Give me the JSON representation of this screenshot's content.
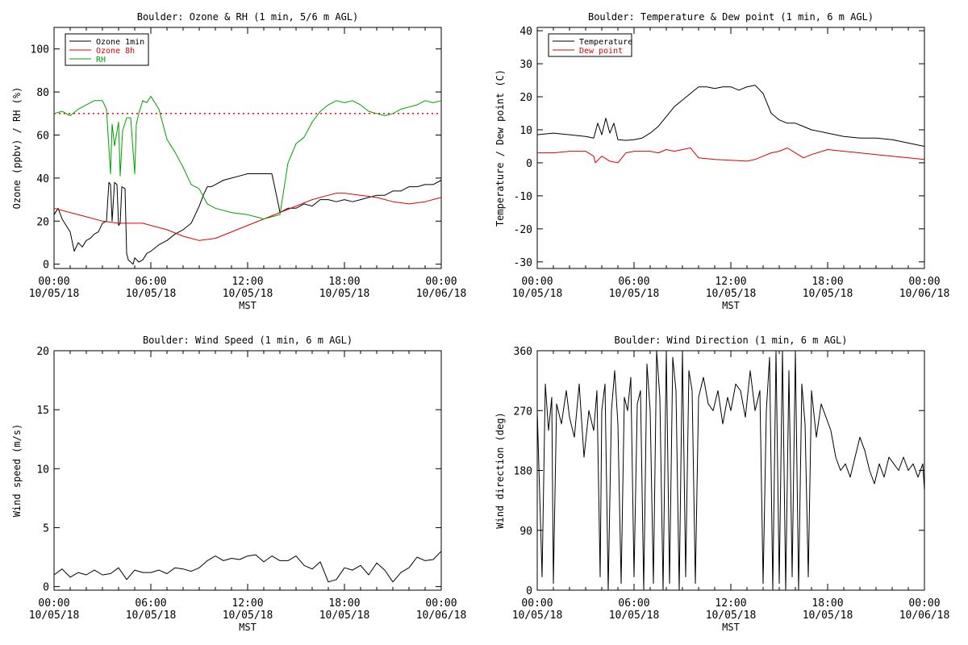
{
  "chart_data": [
    {
      "type": "line",
      "title": "Boulder: Ozone & RH (1 min, 5/6 m AGL)",
      "ylabel": "Ozone (ppbv) / RH (%)",
      "xlabel": "MST",
      "ylim": [
        -2,
        110
      ],
      "yticks": [
        "0",
        "20",
        "40",
        "60",
        "80",
        "100"
      ],
      "ytick_values": [
        0,
        20,
        40,
        60,
        80,
        100
      ],
      "xticks": [
        {
          "time": "00:00",
          "date": "10/05/18"
        },
        {
          "time": "06:00",
          "date": "10/05/18"
        },
        {
          "time": "12:00",
          "date": "10/05/18"
        },
        {
          "time": "18:00",
          "date": "10/05/18"
        },
        {
          "time": "00:00",
          "date": "10/06/18"
        }
      ],
      "xlim_hours": [
        0,
        24
      ],
      "legend_position": "top-left",
      "reference_lines": [
        {
          "y": 70,
          "color": "#ff0000",
          "style": "dotted"
        }
      ],
      "series": [
        {
          "name": "Ozone 1min",
          "color": "#000000",
          "x": [
            0,
            0.25,
            0.5,
            0.75,
            1,
            1.25,
            1.5,
            1.75,
            2,
            2.25,
            2.5,
            2.75,
            3,
            3.25,
            3.4,
            3.5,
            3.6,
            3.75,
            3.9,
            4,
            4.1,
            4.2,
            4.4,
            4.5,
            4.6,
            4.75,
            4.9,
            5,
            5.25,
            5.5,
            5.75,
            6,
            6.5,
            7,
            7.5,
            8,
            8.5,
            9,
            9.25,
            9.5,
            9.75,
            10,
            10.5,
            11,
            11.5,
            12,
            12.5,
            13,
            13.5,
            13.9,
            14,
            14.5,
            15,
            15.5,
            16,
            16.5,
            17,
            17.5,
            18,
            18.5,
            19,
            19.5,
            20,
            20.5,
            21,
            21.5,
            22,
            22.5,
            23,
            23.5,
            24
          ],
          "y": [
            23,
            26,
            21,
            18,
            15,
            6,
            10,
            8,
            11,
            12,
            14,
            15,
            19,
            20,
            38,
            37,
            20,
            38,
            37,
            18,
            19,
            36,
            35,
            5,
            2,
            1,
            0,
            3,
            1,
            2,
            5,
            6,
            9,
            11,
            14,
            16,
            19,
            27,
            32,
            36,
            36,
            37,
            39,
            40,
            41,
            42,
            42,
            42,
            42,
            28,
            24,
            26,
            26,
            28,
            27,
            30,
            30,
            29,
            30,
            29,
            30,
            31,
            32,
            32,
            34,
            34,
            36,
            36,
            37,
            37,
            39
          ]
        },
        {
          "name": "Ozone 8h",
          "color": "#dd0000",
          "x": [
            0,
            1,
            2,
            3,
            4,
            5,
            5.5,
            6,
            7,
            8,
            8.5,
            9,
            10,
            11,
            12,
            13,
            14,
            15,
            16,
            17,
            17.5,
            18,
            19,
            20,
            21,
            22,
            23,
            24
          ],
          "y": [
            26,
            24,
            22,
            20,
            19,
            19,
            19,
            18,
            16,
            13,
            12,
            11,
            12,
            15,
            18,
            21,
            24,
            27,
            30,
            32,
            33,
            33,
            32,
            31,
            29,
            28,
            29,
            31
          ]
        },
        {
          "name": "RH",
          "color": "#00a000",
          "x": [
            0,
            0.5,
            1,
            1.5,
            2,
            2.5,
            3,
            3.25,
            3.5,
            3.6,
            3.75,
            4,
            4.1,
            4.25,
            4.5,
            4.75,
            5,
            5.1,
            5.25,
            5.5,
            5.75,
            6,
            6.5,
            7,
            7.5,
            8,
            8.5,
            9,
            9.5,
            10,
            11,
            12,
            12.5,
            13,
            13.5,
            14,
            14.5,
            15,
            15.5,
            16,
            16.5,
            17,
            17.5,
            18,
            18.5,
            19,
            19.5,
            20,
            20.5,
            21,
            21.5,
            22,
            22.5,
            23,
            23.5,
            24
          ],
          "y": [
            70,
            71,
            69,
            72,
            74,
            76,
            76,
            72,
            42,
            65,
            55,
            66,
            41,
            62,
            68,
            68,
            42,
            65,
            70,
            76,
            75,
            78,
            72,
            58,
            52,
            45,
            37,
            35,
            28,
            26,
            24,
            23,
            22,
            21,
            22,
            23,
            47,
            56,
            59,
            66,
            71,
            74,
            76,
            75,
            76,
            74,
            71,
            70,
            69,
            70,
            72,
            73,
            74,
            76,
            75,
            76
          ]
        }
      ]
    },
    {
      "type": "line",
      "title": "Boulder: Temperature & Dew point (1 min, 6 m AGL)",
      "ylabel": "Temperature / Dew point (C)",
      "xlabel": "MST",
      "ylim": [
        -32,
        41
      ],
      "yticks": [
        "-30",
        "-20",
        "-10",
        "0",
        "10",
        "20",
        "30",
        "40"
      ],
      "ytick_values": [
        -30,
        -20,
        -10,
        0,
        10,
        20,
        30,
        40
      ],
      "xticks": [
        {
          "time": "00:00",
          "date": "10/05/18"
        },
        {
          "time": "06:00",
          "date": "10/05/18"
        },
        {
          "time": "12:00",
          "date": "10/05/18"
        },
        {
          "time": "18:00",
          "date": "10/05/18"
        },
        {
          "time": "00:00",
          "date": "10/06/18"
        }
      ],
      "xlim_hours": [
        0,
        24
      ],
      "legend_position": "top-left",
      "series": [
        {
          "name": "Temperature",
          "color": "#000000",
          "x": [
            0,
            1,
            2,
            3,
            3.5,
            3.75,
            4,
            4.25,
            4.5,
            4.75,
            5,
            5.5,
            6,
            6.5,
            7,
            7.5,
            8,
            8.5,
            9,
            9.5,
            10,
            10.5,
            11,
            11.5,
            12,
            12.5,
            13,
            13.5,
            14,
            14.5,
            15,
            15.5,
            16,
            16.5,
            17,
            18,
            19,
            20,
            21,
            22,
            23,
            24
          ],
          "y": [
            8.5,
            9,
            8.5,
            8,
            7.5,
            12,
            8.5,
            13.5,
            9,
            12,
            7,
            6.8,
            7,
            7.5,
            9,
            11,
            14,
            17,
            19,
            21,
            23,
            23,
            22.5,
            23,
            23,
            22,
            23,
            23.5,
            21,
            15,
            13,
            12,
            12,
            11,
            10,
            9,
            8,
            7.5,
            7.5,
            7,
            6,
            5
          ]
        },
        {
          "name": "Dew point",
          "color": "#dd0000",
          "x": [
            0,
            1,
            2,
            3,
            3.5,
            3.6,
            4,
            4.5,
            5,
            5.5,
            6,
            6.5,
            7,
            7.5,
            8,
            8.5,
            9,
            9.5,
            10,
            11,
            12,
            13,
            13.5,
            14,
            14.5,
            15,
            15.5,
            16,
            16.5,
            17,
            18,
            19,
            20,
            21,
            22,
            23,
            24
          ],
          "y": [
            3,
            3,
            3.5,
            3.5,
            2,
            0,
            2,
            0.5,
            0,
            3,
            3.5,
            3.5,
            3.5,
            3,
            4,
            3.5,
            4,
            4.5,
            1.5,
            1,
            0.8,
            0.5,
            1,
            2,
            3,
            3.5,
            4.5,
            3,
            1.5,
            2.5,
            4,
            3.5,
            3,
            2.5,
            2,
            1.5,
            1
          ]
        }
      ]
    },
    {
      "type": "line",
      "title": "Boulder: Wind Speed (1 min, 6 m AGL)",
      "ylabel": "Wind speed (m/s)",
      "xlabel": "MST",
      "ylim": [
        -0.3,
        20
      ],
      "yticks": [
        "0",
        "5",
        "10",
        "15",
        "20"
      ],
      "ytick_values": [
        0,
        5,
        10,
        15,
        20
      ],
      "xticks": [
        {
          "time": "00:00",
          "date": "10/05/18"
        },
        {
          "time": "06:00",
          "date": "10/05/18"
        },
        {
          "time": "12:00",
          "date": "10/05/18"
        },
        {
          "time": "18:00",
          "date": "10/05/18"
        },
        {
          "time": "00:00",
          "date": "10/06/18"
        }
      ],
      "xlim_hours": [
        0,
        24
      ],
      "series": [
        {
          "color": "#000000",
          "x": [
            0,
            0.5,
            1,
            1.5,
            2,
            2.5,
            3,
            3.5,
            4,
            4.5,
            5,
            5.5,
            6,
            6.5,
            7,
            7.5,
            8,
            8.5,
            9,
            9.5,
            10,
            10.5,
            11,
            11.5,
            12,
            12.5,
            13,
            13.5,
            14,
            14.5,
            15,
            15.5,
            16,
            16.5,
            17,
            17.5,
            18,
            18.5,
            19,
            19.5,
            20,
            20.5,
            21,
            21.5,
            22,
            22.5,
            23,
            23.5,
            24
          ],
          "y": [
            1,
            1.5,
            0.8,
            1.2,
            1,
            1.4,
            1,
            1.1,
            1.6,
            0.6,
            1.4,
            1.2,
            1.2,
            1.4,
            1.1,
            1.6,
            1.5,
            1.3,
            1.6,
            2.2,
            2.6,
            2.2,
            2.4,
            2.3,
            2.6,
            2.7,
            2.1,
            2.6,
            2.2,
            2.2,
            2.6,
            1.8,
            1.5,
            2.1,
            0.4,
            0.6,
            1.6,
            1.4,
            1.8,
            1,
            2,
            1.4,
            0.4,
            1.2,
            1.6,
            2.5,
            2.2,
            2.3,
            3
          ]
        }
      ]
    },
    {
      "type": "line",
      "title": "Boulder: Wind Direction (1 min, 6 m AGL)",
      "ylabel": "Wind direction (deg)",
      "xlabel": "MST",
      "ylim": [
        0,
        360
      ],
      "yticks": [
        "0",
        "90",
        "180",
        "270",
        "360"
      ],
      "ytick_values": [
        0,
        90,
        180,
        270,
        360
      ],
      "xticks": [
        {
          "time": "00:00",
          "date": "10/05/18"
        },
        {
          "time": "06:00",
          "date": "10/05/18"
        },
        {
          "time": "12:00",
          "date": "10/05/18"
        },
        {
          "time": "18:00",
          "date": "10/05/18"
        },
        {
          "time": "00:00",
          "date": "10/06/18"
        }
      ],
      "xlim_hours": [
        0,
        24
      ],
      "series": [
        {
          "color": "#000000",
          "x": [
            0,
            0.3,
            0.5,
            0.7,
            0.9,
            1,
            1.2,
            1.5,
            1.8,
            2,
            2.3,
            2.6,
            2.9,
            3.2,
            3.5,
            3.7,
            3.9,
            4,
            4.2,
            4.4,
            4.6,
            4.8,
            5,
            5.2,
            5.4,
            5.6,
            5.8,
            6,
            6.2,
            6.4,
            6.6,
            6.8,
            7,
            7.2,
            7.4,
            7.6,
            7.8,
            8,
            8.2,
            8.4,
            8.6,
            8.8,
            9,
            9.2,
            9.4,
            9.6,
            9.8,
            10,
            10.3,
            10.6,
            10.9,
            11.2,
            11.5,
            11.8,
            12,
            12.3,
            12.6,
            12.9,
            13.2,
            13.5,
            13.8,
            14,
            14.2,
            14.4,
            14.6,
            14.8,
            15,
            15.2,
            15.4,
            15.6,
            15.8,
            16,
            16.2,
            16.4,
            16.6,
            16.8,
            17,
            17.3,
            17.6,
            17.9,
            18.2,
            18.5,
            18.8,
            19.1,
            19.4,
            19.7,
            20,
            20.3,
            20.6,
            20.9,
            21.2,
            21.5,
            21.8,
            22.1,
            22.4,
            22.7,
            23,
            23.3,
            23.6,
            23.9,
            24
          ],
          "y": [
            270,
            20,
            310,
            240,
            290,
            10,
            280,
            250,
            300,
            260,
            230,
            310,
            200,
            270,
            240,
            300,
            20,
            270,
            310,
            0,
            270,
            330,
            250,
            10,
            290,
            270,
            320,
            20,
            280,
            300,
            0,
            340,
            270,
            10,
            360,
            290,
            0,
            360,
            10,
            350,
            300,
            0,
            360,
            20,
            330,
            300,
            10,
            290,
            320,
            280,
            270,
            300,
            250,
            290,
            270,
            310,
            300,
            260,
            330,
            270,
            300,
            10,
            270,
            350,
            0,
            360,
            10,
            360,
            0,
            330,
            20,
            360,
            0,
            310,
            250,
            20,
            300,
            230,
            280,
            260,
            240,
            200,
            180,
            190,
            170,
            200,
            230,
            210,
            180,
            160,
            190,
            170,
            200,
            190,
            180,
            200,
            180,
            190,
            170,
            190,
            150
          ]
        }
      ]
    }
  ]
}
